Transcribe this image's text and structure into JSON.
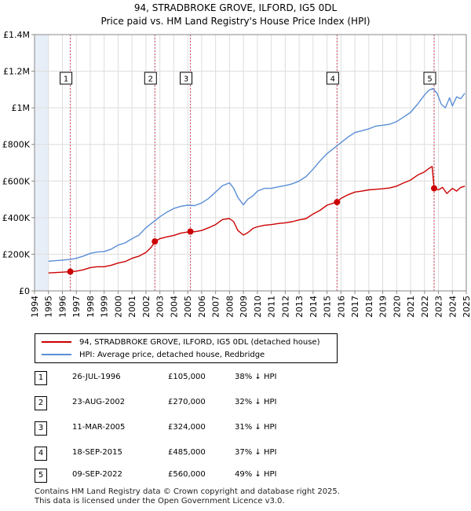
{
  "title_line1": "94, STRADBROKE GROVE, ILFORD, IG5 0DL",
  "title_line2": "Price paid vs. HM Land Registry's House Price Index (HPI)",
  "colors": {
    "property": "#cc0000",
    "hpi": "#5b8ed6",
    "vline": "#e05050",
    "band": "#e8eef8",
    "grid": "#dddddd"
  },
  "chart_data": {
    "type": "line",
    "title": "94, STRADBROKE GROVE, ILFORD, IG5 0DL — Price paid vs. HM Land Registry's House Price Index (HPI)",
    "xlabel": "",
    "ylabel": "",
    "xlim": [
      1994,
      2025
    ],
    "ylim": [
      0,
      1400000
    ],
    "x_ticks": [
      "1994",
      "1995",
      "1996",
      "1997",
      "1998",
      "1999",
      "2000",
      "2001",
      "2002",
      "2003",
      "2004",
      "2005",
      "2006",
      "2007",
      "2008",
      "2009",
      "2010",
      "2011",
      "2012",
      "2013",
      "2014",
      "2015",
      "2016",
      "2017",
      "2018",
      "2019",
      "2020",
      "2021",
      "2022",
      "2023",
      "2024",
      "2025"
    ],
    "y_ticks": [
      {
        "value": 0,
        "label": "£0"
      },
      {
        "value": 200000,
        "label": "£200K"
      },
      {
        "value": 400000,
        "label": "£400K"
      },
      {
        "value": 600000,
        "label": "£600K"
      },
      {
        "value": 800000,
        "label": "£800K"
      },
      {
        "value": 1000000,
        "label": "£1M"
      },
      {
        "value": 1200000,
        "label": "£1.2M"
      },
      {
        "value": 1400000,
        "label": "£1.4M"
      }
    ],
    "series": [
      {
        "name": "94, STRADBROKE GROVE, ILFORD, IG5 0DL (detached house)",
        "x": [
          1995,
          1995.5,
          1996,
          1996.57,
          1997,
          1997.5,
          1998,
          1998.5,
          1999,
          1999.5,
          2000,
          2000.5,
          2001,
          2001.5,
          2002,
          2002.4,
          2002.64,
          2003,
          2003.5,
          2004,
          2004.5,
          2005.19,
          2005.5,
          2006,
          2006.5,
          2007,
          2007.5,
          2008,
          2008.3,
          2008.6,
          2009,
          2009.3,
          2009.7,
          2010,
          2010.5,
          2011,
          2011.5,
          2012,
          2012.5,
          2013,
          2013.5,
          2014,
          2014.5,
          2015,
          2015.5,
          2015.72,
          2016,
          2016.5,
          2017,
          2017.5,
          2018,
          2018.5,
          2019,
          2019.5,
          2020,
          2020.5,
          2021,
          2021.5,
          2022,
          2022.3,
          2022.55,
          2022.69,
          2023,
          2023.3,
          2023.6,
          2024,
          2024.3,
          2024.6,
          2024.9
        ],
        "values": [
          98000,
          100000,
          102000,
          105000,
          108000,
          115000,
          127000,
          132000,
          132000,
          140000,
          152000,
          160000,
          178000,
          190000,
          210000,
          240000,
          270000,
          285000,
          295000,
          303000,
          315000,
          324000,
          323000,
          330000,
          345000,
          362000,
          390000,
          395000,
          378000,
          330000,
          305000,
          318000,
          342000,
          350000,
          358000,
          362000,
          368000,
          372000,
          378000,
          388000,
          395000,
          420000,
          440000,
          468000,
          480000,
          485000,
          505000,
          525000,
          540000,
          545000,
          552000,
          555000,
          558000,
          562000,
          572000,
          590000,
          605000,
          632000,
          650000,
          668000,
          680000,
          560000,
          552000,
          565000,
          532000,
          560000,
          545000,
          565000,
          572000
        ]
      },
      {
        "name": "HPI: Average price, detached house, Redbridge",
        "x": [
          1995,
          1995.5,
          1996,
          1996.57,
          1997,
          1997.5,
          1998,
          1998.5,
          1999,
          1999.5,
          2000,
          2000.5,
          2001,
          2001.5,
          2002,
          2002.5,
          2003,
          2003.5,
          2004,
          2004.5,
          2005,
          2005.5,
          2006,
          2006.5,
          2007,
          2007.5,
          2008,
          2008.3,
          2008.6,
          2009,
          2009.3,
          2009.7,
          2010,
          2010.5,
          2011,
          2011.5,
          2012,
          2012.5,
          2013,
          2013.5,
          2014,
          2014.5,
          2015,
          2015.5,
          2016,
          2016.5,
          2017,
          2017.5,
          2018,
          2018.5,
          2019,
          2019.5,
          2020,
          2020.5,
          2021,
          2021.5,
          2022,
          2022.3,
          2022.6,
          2022.9,
          2023.2,
          2023.5,
          2023.8,
          2024,
          2024.3,
          2024.6,
          2024.9
        ],
        "values": [
          162000,
          165000,
          168000,
          172000,
          178000,
          190000,
          205000,
          212000,
          215000,
          228000,
          250000,
          262000,
          285000,
          305000,
          345000,
          375000,
          405000,
          430000,
          450000,
          462000,
          468000,
          466000,
          480000,
          505000,
          540000,
          575000,
          590000,
          560000,
          510000,
          470000,
          500000,
          520000,
          545000,
          560000,
          560000,
          568000,
          575000,
          585000,
          600000,
          625000,
          665000,
          710000,
          750000,
          780000,
          810000,
          840000,
          865000,
          875000,
          885000,
          900000,
          905000,
          910000,
          925000,
          950000,
          975000,
          1020000,
          1070000,
          1095000,
          1105000,
          1080000,
          1020000,
          1000000,
          1055000,
          1010000,
          1060000,
          1050000,
          1080000
        ]
      }
    ],
    "markers": [
      {
        "num": "1",
        "x": 1996.57,
        "value": 105000,
        "date": "26-JUL-1996",
        "price": "£105,000",
        "hpi_diff": "38% ↓ HPI"
      },
      {
        "num": "2",
        "x": 2002.64,
        "value": 270000,
        "date": "23-AUG-2002",
        "price": "£270,000",
        "hpi_diff": "32% ↓ HPI"
      },
      {
        "num": "3",
        "x": 2005.19,
        "value": 324000,
        "date": "11-MAR-2005",
        "price": "£324,000",
        "hpi_diff": "31% ↓ HPI"
      },
      {
        "num": "4",
        "x": 2015.72,
        "value": 485000,
        "date": "18-SEP-2015",
        "price": "£485,000",
        "hpi_diff": "37% ↓ HPI"
      },
      {
        "num": "5",
        "x": 2022.69,
        "value": 560000,
        "date": "09-SEP-2022",
        "price": "£560,000",
        "hpi_diff": "49% ↓ HPI"
      }
    ]
  },
  "legend": {
    "property_label": "94, STRADBROKE GROVE, ILFORD, IG5 0DL (detached house)",
    "hpi_label": "HPI: Average price, detached house, Redbridge"
  },
  "footer": {
    "line1": "Contains HM Land Registry data © Crown copyright and database right 2025.",
    "line2": "This data is licensed under the Open Government Licence v3.0."
  }
}
